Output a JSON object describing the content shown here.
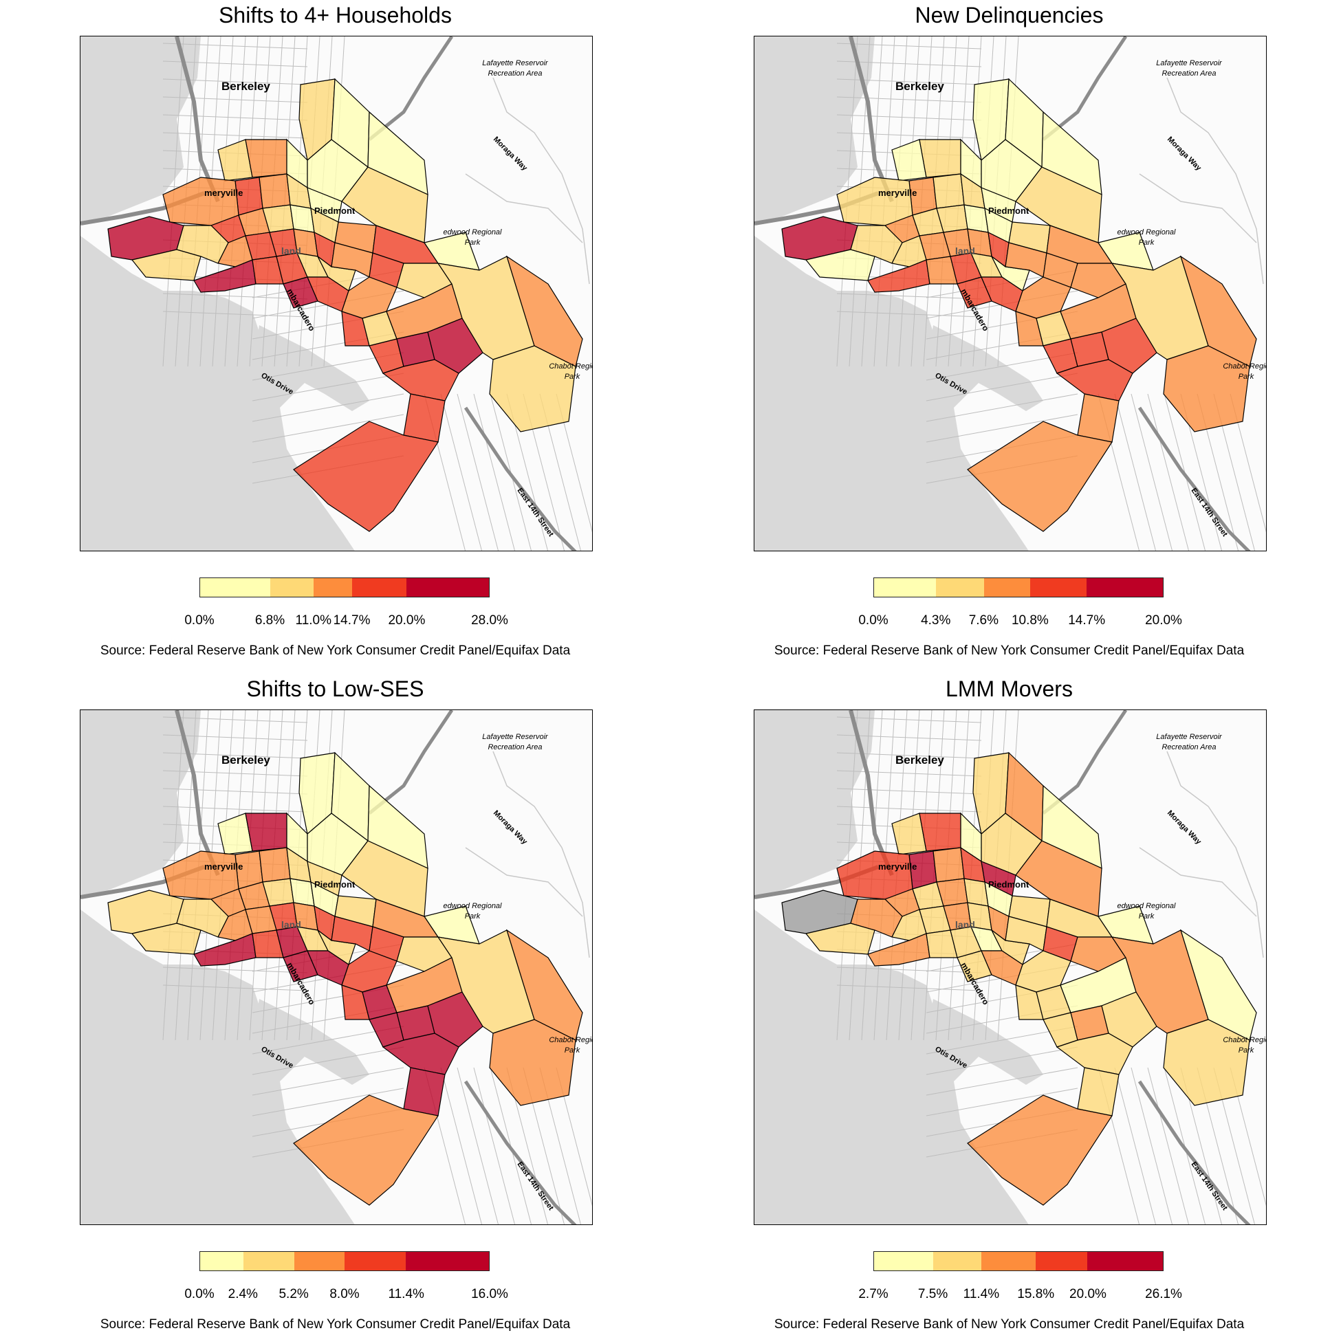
{
  "source_note": "Source: Federal Reserve Bank of New York Consumer Credit Panel/Equifax Data",
  "map_labels": {
    "berkeley": "Berkeley",
    "lafayette1": "Lafayette Reservoir",
    "lafayette2": "Recreation Area",
    "moraga": "Moraga Way",
    "emeryville": "meryville",
    "piedmont": "Piedmont",
    "redwood1": "edwood Regional",
    "redwood2": "Park",
    "land": "land",
    "embarcadero": "mbarcadero",
    "otis": "Otis Drive",
    "chabot1": "Chabot Regio",
    "chabot2": "Park",
    "east14": "East 14th Street"
  },
  "colors": {
    "bin1": "#ffffb2",
    "bin2": "#fed976",
    "bin3": "#fd8d3c",
    "bin4": "#f03b20",
    "bin5": "#bd0026",
    "missing": "#9a9a9a",
    "water": "#d9d9d9",
    "land": "#fbfbfb",
    "roads": "#bdbdbd",
    "highway": "#8c8c8c"
  },
  "panels": [
    {
      "title": "Shifts to 4+ Households",
      "breaks": [
        "0.0%",
        "6.8%",
        "11.0%",
        "14.7%",
        "20.0%",
        "28.0%"
      ],
      "break_values": [
        0.0,
        6.8,
        11.0,
        14.7,
        20.0,
        28.0
      ],
      "tract_bins": [
        2,
        1,
        1,
        2,
        3,
        1,
        1,
        2,
        4,
        3,
        2,
        1,
        3,
        5,
        4,
        3,
        2,
        1,
        2,
        3,
        4,
        1,
        2,
        2,
        3,
        4,
        4,
        3,
        4,
        5,
        4,
        4,
        2,
        2,
        3,
        4,
        5,
        4,
        3,
        2,
        4,
        2,
        3,
        4,
        5,
        5,
        4,
        2,
        3,
        2,
        4,
        4
      ]
    },
    {
      "title": "New Delinquencies",
      "breaks": [
        "0.0%",
        "4.3%",
        "7.6%",
        "10.8%",
        "14.7%",
        "20.0%"
      ],
      "break_values": [
        0.0,
        4.3,
        7.6,
        10.8,
        14.7,
        20.0
      ],
      "tract_bins": [
        1,
        1,
        1,
        1,
        2,
        1,
        1,
        2,
        3,
        2,
        2,
        1,
        2,
        5,
        3,
        2,
        2,
        1,
        1,
        2,
        3,
        1,
        1,
        2,
        2,
        3,
        3,
        3,
        4,
        4,
        3,
        4,
        2,
        1,
        3,
        3,
        4,
        4,
        3,
        3,
        3,
        2,
        3,
        4,
        4,
        4,
        4,
        2,
        3,
        3,
        3,
        3
      ]
    },
    {
      "title": "Shifts to Low-SES",
      "breaks": [
        "0.0%",
        "2.4%",
        "5.2%",
        "8.0%",
        "11.4%",
        "16.0%"
      ],
      "break_values": [
        0.0,
        2.4,
        5.2,
        8.0,
        11.4,
        16.0
      ],
      "tract_bins": [
        1,
        1,
        1,
        1,
        5,
        1,
        1,
        2,
        3,
        3,
        2,
        2,
        3,
        2,
        3,
        3,
        2,
        1,
        1,
        2,
        3,
        1,
        2,
        2,
        3,
        3,
        4,
        3,
        4,
        5,
        4,
        5,
        2,
        2,
        4,
        4,
        5,
        5,
        4,
        2,
        4,
        5,
        3,
        5,
        5,
        5,
        5,
        2,
        3,
        3,
        5,
        3
      ]
    },
    {
      "title": "LMM Movers",
      "breaks": [
        "2.7%",
        "7.5%",
        "11.4%",
        "15.8%",
        "20.0%",
        "26.1%"
      ],
      "break_values": [
        2.7,
        7.5,
        11.4,
        15.8,
        20.0,
        26.1
      ],
      "tract_bins": [
        2,
        3,
        1,
        2,
        4,
        1,
        2,
        3,
        5,
        3,
        4,
        5,
        4,
        0,
        3,
        2,
        3,
        2,
        1,
        2,
        2,
        1,
        2,
        3,
        2,
        2,
        3,
        2,
        3,
        3,
        2,
        2,
        1,
        2,
        2,
        4,
        2,
        3,
        2,
        3,
        2,
        2,
        1,
        2,
        3,
        2,
        2,
        3,
        1,
        2,
        2,
        3
      ]
    }
  ]
}
